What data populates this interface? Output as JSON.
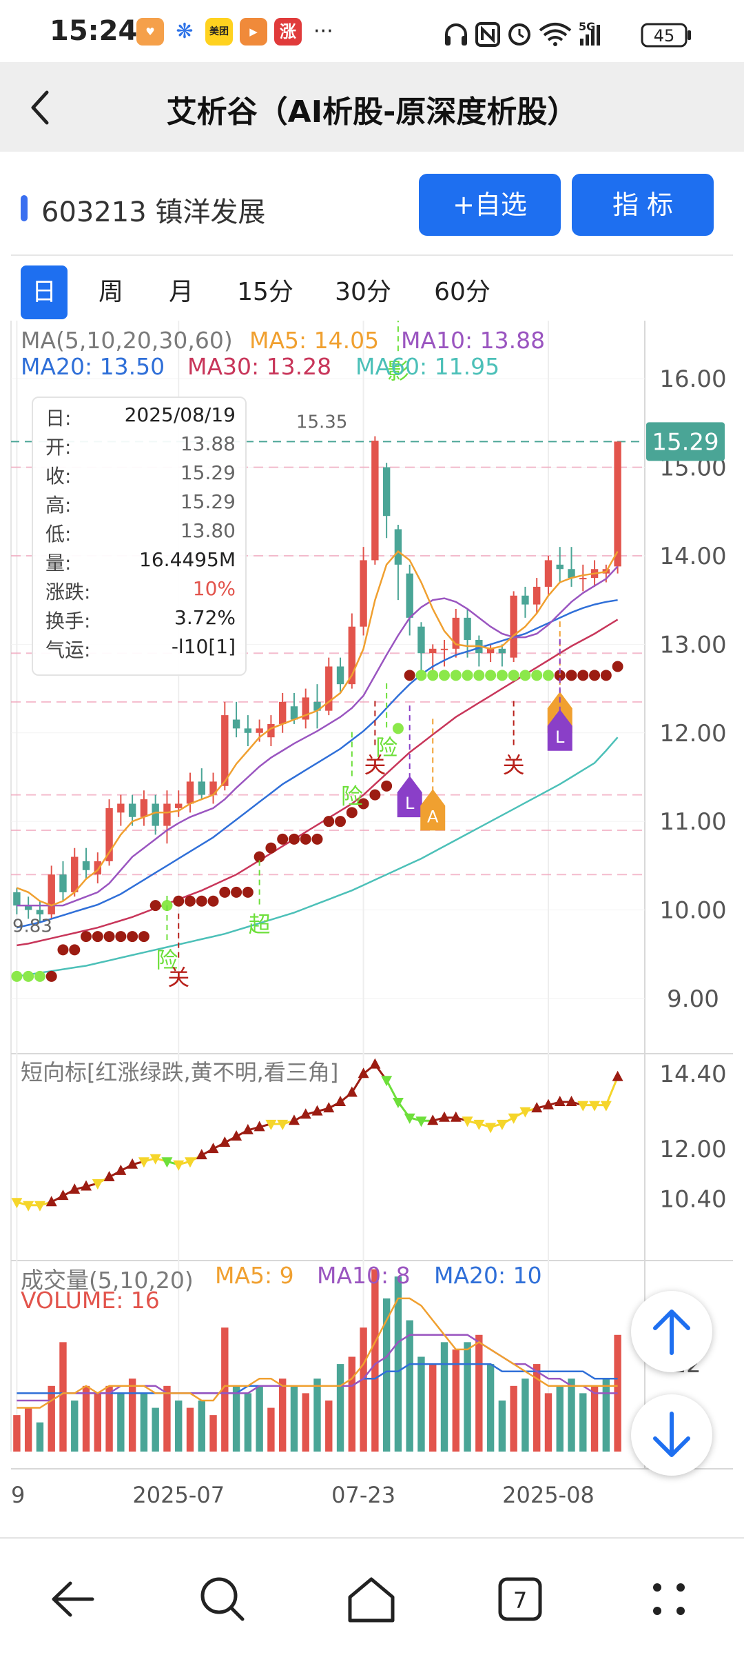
{
  "status_bar": {
    "time": "15:24",
    "app_icons": [
      "heart-app-icon",
      "blue-app-icon",
      "美团",
      "play-app-icon",
      "涨"
    ],
    "more": "···",
    "network": "5G",
    "battery": "45"
  },
  "nav": {
    "title": "艾析谷（AI析股-原深度析股）"
  },
  "stock": {
    "code_name": "603213 镇洋发展",
    "add_watch_label": "+自选",
    "indicator_label": "指  标"
  },
  "periods": [
    "日",
    "周",
    "月",
    "15分",
    "30分",
    "60分"
  ],
  "active_period": 0,
  "ma_legend": {
    "main": "MA(5,10,20,30,60)",
    "ma5": "MA5: 14.05",
    "ma10": "MA10: 13.88",
    "ma20": "MA20: 13.50",
    "ma30": "MA30: 13.28",
    "ma60": "MA60: 11.95"
  },
  "info_box": [
    {
      "k": "日:",
      "v": "2025/08/19"
    },
    {
      "k": "开:",
      "v": "13.88"
    },
    {
      "k": "收:",
      "v": "15.29"
    },
    {
      "k": "高:",
      "v": "15.29"
    },
    {
      "k": "低:",
      "v": "13.80"
    },
    {
      "k": "量:",
      "v": "16.4495M"
    },
    {
      "k": "涨跌:",
      "v": "10%"
    },
    {
      "k": "换手:",
      "v": "3.72%"
    },
    {
      "k": "气运:",
      "v": "-l10[1]"
    }
  ],
  "sub1_title": "短向标[红涨绿跌,黄不明,看三角]",
  "vol_legend": {
    "main": "成交量(5,10,20)",
    "ma5": "MA5: 9",
    "ma10": "MA10: 8",
    "ma20": "MA20: 10",
    "volume": "VOLUME: 16"
  },
  "colors": {
    "up": "#e2544c",
    "down": "#4aa596",
    "ma5": "#f0a030",
    "ma10": "#9a55c0",
    "ma20": "#2f6fd8",
    "ma30": "#c8365a",
    "ma60": "#4cc0b8",
    "accent": "#1e6ff0"
  },
  "chart_data": [
    {
      "type": "candlestick",
      "yticks": [
        16.0,
        15.0,
        14.0,
        13.0,
        12.0,
        11.0,
        10.0,
        9.0
      ],
      "ylim": [
        8.4,
        16.5
      ],
      "current_price": 15.29,
      "high_label": "15.35",
      "low_label": "9.83",
      "xticks": [
        {
          "label": "9",
          "index": 0
        },
        {
          "label": "2025-07",
          "index": 14
        },
        {
          "label": "07-23",
          "index": 30
        },
        {
          "label": "2025-08",
          "index": 46
        }
      ],
      "candles": [
        [
          10.2,
          10.05,
          10.25,
          9.95
        ],
        [
          10.05,
          10.0,
          10.15,
          9.9
        ],
        [
          10.0,
          9.95,
          10.1,
          9.85
        ],
        [
          9.95,
          10.4,
          10.5,
          9.9
        ],
        [
          10.4,
          10.2,
          10.55,
          10.1
        ],
        [
          10.2,
          10.6,
          10.7,
          10.15
        ],
        [
          10.55,
          10.45,
          10.7,
          10.35
        ],
        [
          10.4,
          10.55,
          10.65,
          10.3
        ],
        [
          10.55,
          11.15,
          11.25,
          10.5
        ],
        [
          11.1,
          11.2,
          11.3,
          10.95
        ],
        [
          11.2,
          11.05,
          11.3,
          10.95
        ],
        [
          11.05,
          11.25,
          11.35,
          10.95
        ],
        [
          11.2,
          10.95,
          11.3,
          10.85
        ],
        [
          10.95,
          11.2,
          11.35,
          10.75
        ],
        [
          11.15,
          11.2,
          11.35,
          11.05
        ],
        [
          11.2,
          11.45,
          11.55,
          11.1
        ],
        [
          11.45,
          11.3,
          11.6,
          11.25
        ],
        [
          11.3,
          11.45,
          11.55,
          11.2
        ],
        [
          11.4,
          12.2,
          12.35,
          11.35
        ],
        [
          12.15,
          12.05,
          12.35,
          11.95
        ],
        [
          12.05,
          12.0,
          12.2,
          11.85
        ],
        [
          12.0,
          12.05,
          12.15,
          11.9
        ],
        [
          11.95,
          12.1,
          12.2,
          11.85
        ],
        [
          12.1,
          12.35,
          12.45,
          12.0
        ],
        [
          12.3,
          12.15,
          12.45,
          12.1
        ],
        [
          12.15,
          12.4,
          12.5,
          12.05
        ],
        [
          12.35,
          12.25,
          12.55,
          12.05
        ],
        [
          12.25,
          12.75,
          12.85,
          12.2
        ],
        [
          12.75,
          12.55,
          12.85,
          12.45
        ],
        [
          12.55,
          13.2,
          13.35,
          12.5
        ],
        [
          13.2,
          13.95,
          14.1,
          13.1
        ],
        [
          13.95,
          15.3,
          15.35,
          13.9
        ],
        [
          15.0,
          14.45,
          15.05,
          14.2
        ],
        [
          14.3,
          13.9,
          14.35,
          13.5
        ],
        [
          13.8,
          13.3,
          13.9,
          13.1
        ],
        [
          13.2,
          12.9,
          13.25,
          12.6
        ],
        [
          12.9,
          12.95,
          13.0,
          12.7
        ],
        [
          12.95,
          12.95,
          13.05,
          12.75
        ],
        [
          12.95,
          13.3,
          13.4,
          12.85
        ],
        [
          13.3,
          13.05,
          13.4,
          12.85
        ],
        [
          13.05,
          12.9,
          13.1,
          12.75
        ],
        [
          12.9,
          12.95,
          13.0,
          12.8
        ],
        [
          12.95,
          12.9,
          13.0,
          12.75
        ],
        [
          12.85,
          13.55,
          13.6,
          12.8
        ],
        [
          13.55,
          13.45,
          13.65,
          13.3
        ],
        [
          13.45,
          13.65,
          13.75,
          13.35
        ],
        [
          13.65,
          13.95,
          14.0,
          13.55
        ],
        [
          13.9,
          13.85,
          14.1,
          13.7
        ],
        [
          13.85,
          13.75,
          14.1,
          13.65
        ],
        [
          13.75,
          13.75,
          13.9,
          13.6
        ],
        [
          13.75,
          13.85,
          13.95,
          13.65
        ],
        [
          13.8,
          13.85,
          13.9,
          13.7
        ],
        [
          13.88,
          15.29,
          15.29,
          13.8
        ]
      ],
      "ma5": [
        10.25,
        10.2,
        10.1,
        10.05,
        10.1,
        10.2,
        10.35,
        10.45,
        10.65,
        10.85,
        11.0,
        11.05,
        11.1,
        11.1,
        11.12,
        11.2,
        11.25,
        11.3,
        11.45,
        11.65,
        11.8,
        11.95,
        12.05,
        12.1,
        12.15,
        12.2,
        12.25,
        12.35,
        12.45,
        12.65,
        12.95,
        13.5,
        13.9,
        14.05,
        13.95,
        13.7,
        13.4,
        13.15,
        13.0,
        12.98,
        12.98,
        12.95,
        12.98,
        13.1,
        13.2,
        13.35,
        13.55,
        13.7,
        13.75,
        13.78,
        13.8,
        13.82,
        14.05
      ],
      "ma10": [
        10.05,
        10.05,
        10.05,
        10.05,
        10.05,
        10.1,
        10.15,
        10.2,
        10.3,
        10.45,
        10.6,
        10.7,
        10.8,
        10.9,
        10.98,
        11.05,
        11.1,
        11.15,
        11.25,
        11.38,
        11.5,
        11.62,
        11.72,
        11.8,
        11.88,
        11.95,
        12.02,
        12.1,
        12.18,
        12.28,
        12.42,
        12.65,
        12.88,
        13.1,
        13.3,
        13.42,
        13.5,
        13.52,
        13.48,
        13.4,
        13.3,
        13.2,
        13.12,
        13.08,
        13.08,
        13.12,
        13.22,
        13.35,
        13.48,
        13.58,
        13.66,
        13.74,
        13.88
      ],
      "ma20": [
        9.8,
        9.83,
        9.86,
        9.9,
        9.94,
        9.98,
        10.02,
        10.06,
        10.12,
        10.18,
        10.26,
        10.34,
        10.42,
        10.5,
        10.58,
        10.66,
        10.74,
        10.82,
        10.92,
        11.02,
        11.12,
        11.22,
        11.32,
        11.42,
        11.5,
        11.58,
        11.66,
        11.74,
        11.82,
        11.92,
        12.02,
        12.14,
        12.28,
        12.42,
        12.55,
        12.66,
        12.75,
        12.82,
        12.88,
        12.92,
        12.96,
        13.0,
        13.04,
        13.08,
        13.12,
        13.18,
        13.24,
        13.3,
        13.36,
        13.41,
        13.45,
        13.48,
        13.5
      ],
      "ma30": [
        9.6,
        9.62,
        9.65,
        9.68,
        9.71,
        9.74,
        9.77,
        9.8,
        9.84,
        9.88,
        9.92,
        9.97,
        10.02,
        10.07,
        10.12,
        10.17,
        10.22,
        10.28,
        10.34,
        10.4,
        10.48,
        10.56,
        10.64,
        10.72,
        10.8,
        10.88,
        10.96,
        11.04,
        11.12,
        11.2,
        11.3,
        11.42,
        11.54,
        11.66,
        11.78,
        11.88,
        11.98,
        12.08,
        12.18,
        12.26,
        12.34,
        12.42,
        12.5,
        12.58,
        12.66,
        12.74,
        12.82,
        12.9,
        12.98,
        13.05,
        13.12,
        13.2,
        13.28
      ],
      "ma60": [
        9.25,
        9.27,
        9.29,
        9.31,
        9.33,
        9.35,
        9.37,
        9.4,
        9.43,
        9.46,
        9.49,
        9.52,
        9.55,
        9.58,
        9.61,
        9.64,
        9.67,
        9.7,
        9.73,
        9.77,
        9.81,
        9.85,
        9.89,
        9.93,
        9.97,
        10.02,
        10.07,
        10.12,
        10.17,
        10.22,
        10.28,
        10.34,
        10.4,
        10.46,
        10.52,
        10.58,
        10.65,
        10.72,
        10.79,
        10.86,
        10.93,
        11.0,
        11.07,
        11.14,
        11.21,
        11.28,
        11.35,
        11.42,
        11.5,
        11.58,
        11.66,
        11.8,
        11.95
      ],
      "signal_dots": [
        9.25,
        9.25,
        9.25,
        9.25,
        9.55,
        9.55,
        9.7,
        9.7,
        9.7,
        9.7,
        9.7,
        9.7,
        10.05,
        10.05,
        10.1,
        10.1,
        10.1,
        10.1,
        10.2,
        10.2,
        10.2,
        10.6,
        10.7,
        10.8,
        10.8,
        10.8,
        10.8,
        11.0,
        11.0,
        11.1,
        11.2,
        11.3,
        11.4,
        12.05,
        12.65,
        12.65,
        12.65,
        12.65,
        12.65,
        12.65,
        12.65,
        12.65,
        12.65,
        12.65,
        12.65,
        12.65,
        12.65,
        12.65,
        12.65,
        12.65,
        12.65,
        12.65,
        12.75
      ],
      "signal_dot_green": [
        true,
        true,
        true,
        false,
        false,
        false,
        false,
        false,
        false,
        false,
        false,
        false,
        false,
        true,
        false,
        false,
        false,
        false,
        false,
        false,
        false,
        false,
        false,
        false,
        false,
        false,
        false,
        false,
        false,
        false,
        false,
        false,
        false,
        true,
        false,
        true,
        true,
        true,
        true,
        true,
        true,
        true,
        true,
        true,
        true,
        true,
        true,
        false,
        false,
        false,
        false,
        false,
        false
      ],
      "annotations": [
        {
          "text": "险",
          "color": "#6ddf3a",
          "index": 13,
          "price": 9.35
        },
        {
          "text": "关",
          "color": "#b8201a",
          "index": 14,
          "price": 9.15
        },
        {
          "text": "超",
          "color": "#6ddf3a",
          "index": 21,
          "price": 9.75
        },
        {
          "text": "险",
          "color": "#6ddf3a",
          "index": 29,
          "price": 11.2
        },
        {
          "text": "关",
          "color": "#b8201a",
          "index": 31,
          "price": 11.55
        },
        {
          "text": "险",
          "color": "#6ddf3a",
          "index": 32,
          "price": 11.75
        },
        {
          "text": "影",
          "color": "#6ddf3a",
          "index": 33,
          "price": 16.0
        },
        {
          "text": "关",
          "color": "#b8201a",
          "index": 43,
          "price": 11.55
        }
      ],
      "badges": [
        {
          "text": "L",
          "color": "#8a3fc8",
          "index": 34,
          "price": 11.25
        },
        {
          "text": "A",
          "color": "#f0a030",
          "index": 36,
          "price": 11.1
        },
        {
          "text": "L",
          "color": "#f0a030",
          "index": 47,
          "price": 12.2
        },
        {
          "text": "L",
          "color": "#8a3fc8",
          "index": 47,
          "price": 12.0
        }
      ]
    },
    {
      "type": "line",
      "name": "短向标",
      "yticks": [
        14.4,
        12.0,
        10.4
      ],
      "ylim": [
        9.6,
        15.0
      ],
      "values": [
        10.3,
        10.2,
        10.2,
        10.3,
        10.5,
        10.7,
        10.8,
        10.9,
        11.1,
        11.3,
        11.5,
        11.6,
        11.7,
        11.6,
        11.5,
        11.6,
        11.8,
        12.0,
        12.2,
        12.4,
        12.6,
        12.7,
        12.8,
        12.8,
        12.9,
        13.1,
        13.2,
        13.3,
        13.5,
        13.8,
        14.4,
        14.7,
        14.2,
        13.5,
        13.0,
        12.9,
        12.9,
        13.0,
        13.0,
        12.9,
        12.8,
        12.7,
        12.8,
        13.0,
        13.2,
        13.3,
        13.4,
        13.5,
        13.5,
        13.4,
        13.4,
        13.4,
        14.3
      ],
      "markers": [
        "y",
        "y",
        "y",
        "r",
        "r",
        "r",
        "r",
        "y",
        "r",
        "r",
        "r",
        "y",
        "y",
        "g",
        "y",
        "y",
        "r",
        "r",
        "r",
        "r",
        "r",
        "r",
        "y",
        "y",
        "r",
        "r",
        "r",
        "r",
        "r",
        "r",
        "r",
        "r",
        "g",
        "g",
        "g",
        "g",
        "r",
        "r",
        "r",
        "y",
        "y",
        "y",
        "y",
        "y",
        "y",
        "r",
        "r",
        "r",
        "r",
        "y",
        "y",
        "y",
        "r"
      ]
    },
    {
      "type": "bar",
      "name": "成交量",
      "ytick_label": "12",
      "ylim": [
        0,
        26
      ],
      "values": [
        5,
        6,
        4,
        9,
        15,
        7,
        9,
        8,
        9,
        8,
        10,
        8,
        6,
        9,
        7,
        6,
        7,
        5,
        17,
        9,
        8,
        9,
        6,
        10,
        9,
        8,
        10,
        7,
        12,
        13,
        17,
        25,
        21,
        24,
        18,
        13,
        12,
        15,
        14,
        15,
        16,
        12,
        7,
        9,
        10,
        12,
        8,
        9,
        10,
        8,
        9,
        10,
        16
      ],
      "up": [
        true,
        true,
        false,
        true,
        true,
        false,
        true,
        true,
        true,
        false,
        true,
        false,
        false,
        true,
        false,
        true,
        false,
        true,
        true,
        false,
        false,
        false,
        true,
        true,
        false,
        true,
        false,
        true,
        false,
        true,
        true,
        true,
        false,
        false,
        false,
        false,
        true,
        false,
        true,
        false,
        true,
        false,
        false,
        true,
        false,
        true,
        true,
        false,
        false,
        false,
        true,
        false,
        true
      ],
      "ma5": [
        6,
        6,
        6,
        7,
        8,
        8,
        9,
        8,
        9,
        9,
        9,
        9,
        8,
        8,
        8,
        8,
        7,
        7,
        9,
        9,
        9,
        10,
        10,
        9,
        9,
        9,
        9,
        9,
        9,
        10,
        12,
        15,
        18,
        21,
        21,
        20,
        18,
        16,
        14,
        14,
        15,
        14,
        13,
        12,
        11,
        10,
        9,
        9,
        9,
        9,
        9,
        9,
        9
      ],
      "ma10": [
        7,
        7,
        7,
        7,
        8,
        8,
        8,
        8,
        8,
        9,
        9,
        9,
        9,
        8,
        8,
        8,
        8,
        8,
        8,
        8,
        8,
        9,
        9,
        9,
        9,
        9,
        9,
        9,
        9,
        9,
        10,
        12,
        13,
        15,
        16,
        16,
        16,
        16,
        16,
        16,
        15,
        14,
        13,
        12,
        12,
        11,
        10,
        10,
        9,
        9,
        8,
        8,
        8
      ],
      "ma20": [
        8,
        8,
        8,
        8,
        8,
        8,
        8,
        8,
        8,
        8,
        8,
        8,
        8,
        8,
        8,
        8,
        8,
        8,
        8,
        8,
        9,
        9,
        9,
        9,
        9,
        9,
        9,
        9,
        9,
        9,
        10,
        10,
        11,
        11,
        12,
        12,
        12,
        12,
        12,
        12,
        12,
        12,
        11,
        11,
        11,
        11,
        11,
        11,
        11,
        11,
        10,
        10,
        10
      ]
    }
  ]
}
